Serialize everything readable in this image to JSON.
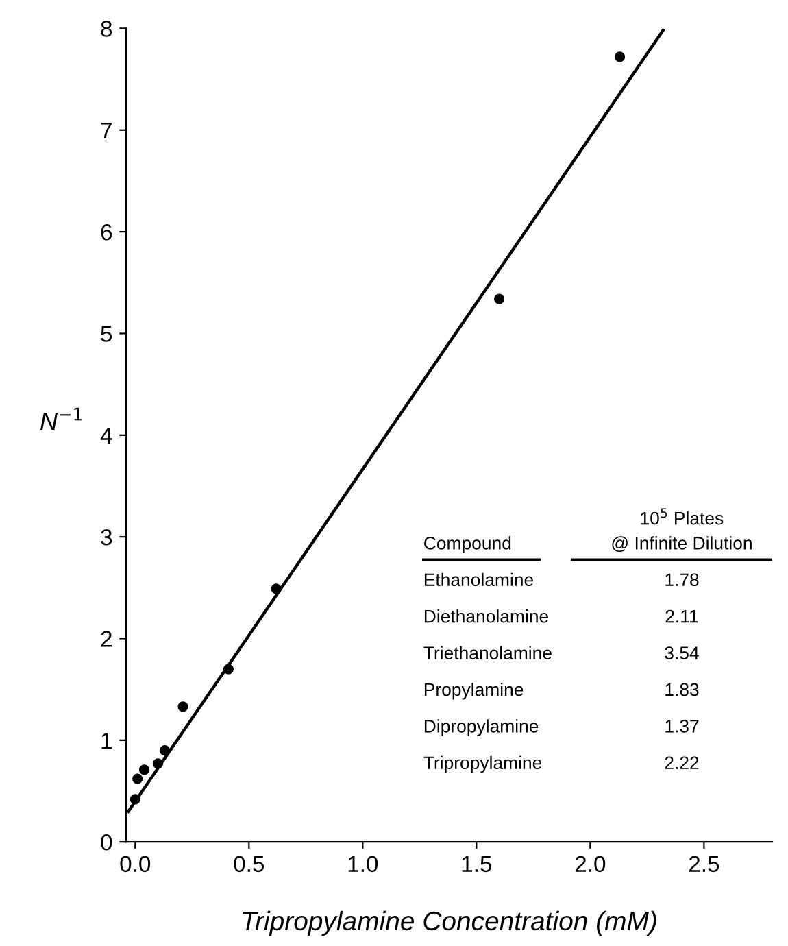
{
  "chart_data": {
    "type": "scatter",
    "xlabel": "Tripropylamine Concentration (mM)",
    "ylabel": "N$^{−1}$",
    "xlim": [
      -0.04,
      2.8
    ],
    "ylim": [
      0,
      8
    ],
    "xticks": [
      {
        "value": 0,
        "label": "0.0"
      },
      {
        "value": 0.5,
        "label": "0.5"
      },
      {
        "value": 1,
        "label": "1.0"
      },
      {
        "value": 1.5,
        "label": "1.5"
      },
      {
        "value": 2,
        "label": "2.0"
      },
      {
        "value": 2.5,
        "label": "2.5"
      }
    ],
    "yticks": [
      0,
      1,
      2,
      3,
      4,
      5,
      6,
      7,
      8
    ],
    "grid": false,
    "series": [
      {
        "marker": "circle",
        "color": "#000000",
        "x": [
          0.0,
          0.01,
          0.04,
          0.1,
          0.13,
          0.21,
          0.41,
          0.62,
          1.6,
          2.13
        ],
        "values": [
          0.42,
          0.62,
          0.71,
          0.77,
          0.9,
          1.33,
          1.7,
          2.49,
          5.34,
          7.72
        ]
      },
      {
        "type": "line",
        "color": "#000000",
        "line_style": "solid",
        "x": [
          -0.03,
          2.32
        ],
        "values": [
          0.3,
          7.98
        ]
      }
    ],
    "annotations": [
      "Compound",
      "10$^{5}$ Plates\n@ Infinite Dilution",
      "Ethanolamine",
      "1.78",
      "Diethanolamine",
      "2.11",
      "Triethanolamine",
      "3.54",
      "Propylamine",
      "1.83",
      "Dipropylamine",
      "1.37",
      "Tripropylamine",
      "2.22"
    ]
  }
}
